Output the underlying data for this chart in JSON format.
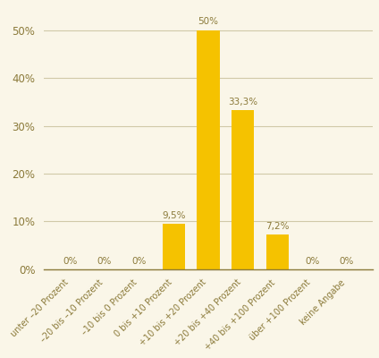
{
  "categories": [
    "unter –20 Prozent",
    "–20 bis –10 Prozent",
    "–10 bis 0 Prozent",
    "0 bis +10 Prozent",
    "+10 bis +20 Prozent",
    "+20 bis +40 Prozent",
    "+40 bis +100 Prozent",
    "über +100 Prozent",
    "keine Angabe"
  ],
  "values": [
    0,
    0,
    0,
    9.5,
    50,
    33.3,
    7.2,
    0,
    0
  ],
  "labels": [
    "0%",
    "0%",
    "0%",
    "9,5%",
    "50%",
    "33,3%",
    "7,2%",
    "0%",
    "0%"
  ],
  "bar_color": "#F5C200",
  "background_color": "#FAF6E8",
  "text_color": "#8B7A3A",
  "grid_color": "#D0C9A8",
  "ylim": [
    0,
    55
  ],
  "yticks": [
    0,
    10,
    20,
    30,
    40,
    50
  ],
  "ytick_labels": [
    "0%",
    "10%",
    "20%",
    "30%",
    "40%",
    "50%"
  ]
}
